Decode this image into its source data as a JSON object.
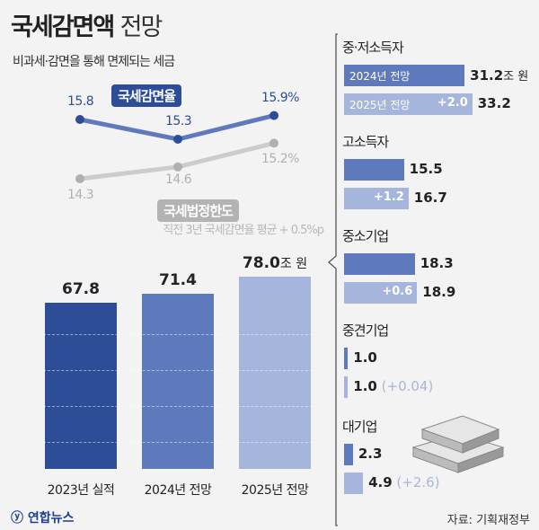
{
  "header": {
    "title_bold": "국세감면액",
    "title_light": "전망",
    "subtitle": "비과세·감면을 통해 면제되는 세금"
  },
  "colors": {
    "dark_blue": "#2d4d96",
    "mid_blue": "#5f79bd",
    "light_blue": "#a6b5dc",
    "gray_line": "#cccccc",
    "gray_point": "#b0b0b0",
    "background": "#f3f3f3"
  },
  "chart_data": [
    {
      "type": "line",
      "series": [
        {
          "name": "국세감면율",
          "values": [
            15.8,
            15.3,
            15.9
          ],
          "labels": [
            "15.8",
            "15.3",
            "15.9%"
          ]
        },
        {
          "name": "국세법정한도",
          "values": [
            14.3,
            14.6,
            15.2
          ],
          "labels": [
            "14.3",
            "14.6",
            "15.2%"
          ]
        }
      ],
      "note": "직전 3년 국세감면율 평균 + 0.5%p"
    },
    {
      "type": "bar",
      "categories": [
        "2023년 실적",
        "2024년 전망",
        "2025년 전망"
      ],
      "values": [
        67.8,
        71.4,
        78.0
      ],
      "labels": [
        "67.8",
        "71.4",
        "78.0"
      ],
      "unit": "조 원"
    },
    {
      "type": "bar",
      "orientation": "horizontal",
      "unit": "조 원",
      "legend": [
        "2024년 전망",
        "2025년 전망"
      ],
      "groups": [
        {
          "name": "중·저소득자",
          "v2024": 31.2,
          "v2025": 33.2,
          "l2024": "31.2",
          "l2025": "33.2",
          "delta": "+2.0",
          "delta_inside": true
        },
        {
          "name": "고소득자",
          "v2024": 15.5,
          "v2025": 16.7,
          "l2024": "15.5",
          "l2025": "16.7",
          "delta": "+1.2",
          "delta_inside": true
        },
        {
          "name": "중소기업",
          "v2024": 18.3,
          "v2025": 18.9,
          "l2024": "18.3",
          "l2025": "18.9",
          "delta": "+0.6",
          "delta_inside": true
        },
        {
          "name": "중견기업",
          "v2024": 1.0,
          "v2025": 1.0,
          "l2024": "1.0",
          "l2025": "1.0",
          "delta": "(+0.04)",
          "delta_inside": false
        },
        {
          "name": "대기업",
          "v2024": 2.3,
          "v2025": 4.9,
          "l2024": "2.3",
          "l2025": "4.9",
          "delta": "(+2.6)",
          "delta_inside": false
        }
      ]
    }
  ],
  "footer": {
    "logo": "연합뉴스",
    "source": "자료: 기획재정부"
  }
}
